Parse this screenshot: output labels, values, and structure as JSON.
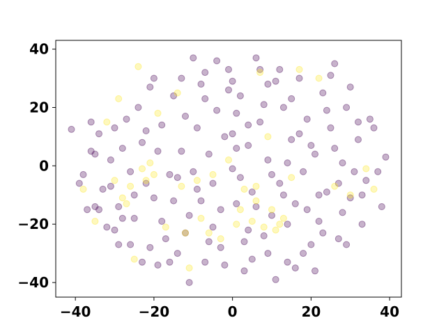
{
  "chart_data": {
    "type": "scatter",
    "title": "",
    "xlabel": "",
    "ylabel": "",
    "xlim": [
      -45,
      43
    ],
    "ylim": [
      -45,
      43
    ],
    "x_ticks": [
      -40,
      -20,
      0,
      20,
      40
    ],
    "y_ticks": [
      -40,
      -20,
      0,
      20,
      40
    ],
    "grid": false,
    "legend": "none",
    "colors": {
      "class_0": "#440154",
      "class_1": "#fde725"
    },
    "marker_alpha": 0.3,
    "series": [
      {
        "class": 0,
        "color": "#440154",
        "points": [
          [
            -41,
            12.5
          ],
          [
            -38,
            -3
          ],
          [
            -36,
            5
          ],
          [
            -35,
            -14
          ],
          [
            -34,
            -15
          ],
          [
            -33,
            -8
          ],
          [
            -31,
            2
          ],
          [
            -30,
            -22
          ],
          [
            -28,
            6
          ],
          [
            -26,
            -27
          ],
          [
            -25,
            -18
          ],
          [
            -23,
            -33
          ],
          [
            -22,
            -6
          ],
          [
            -21,
            27
          ],
          [
            -20,
            -11
          ],
          [
            -18,
            14
          ],
          [
            -17,
            -25
          ],
          [
            -16,
            -3
          ],
          [
            -15,
            24
          ],
          [
            -14,
            -30
          ],
          [
            -13,
            5
          ],
          [
            -12,
            17
          ],
          [
            -11,
            -17
          ],
          [
            -10,
            37
          ],
          [
            -9,
            -8
          ],
          [
            -8,
            28
          ],
          [
            -7,
            -33
          ],
          [
            -6,
            4
          ],
          [
            -5,
            -21
          ],
          [
            -4,
            19
          ],
          [
            -3,
            -28
          ],
          [
            -2,
            10
          ],
          [
            -1,
            33
          ],
          [
            0,
            -1
          ],
          [
            1,
            -13
          ],
          [
            2,
            24
          ],
          [
            3,
            -36
          ],
          [
            4,
            7
          ],
          [
            5,
            -9
          ],
          [
            6,
            37
          ],
          [
            7,
            15
          ],
          [
            8,
            -24
          ],
          [
            9,
            2
          ],
          [
            10,
            -17
          ],
          [
            11,
            29
          ],
          [
            12,
            -6
          ],
          [
            13,
            20
          ],
          [
            14,
            -33
          ],
          [
            15,
            9
          ],
          [
            16,
            -13
          ],
          [
            17,
            30
          ],
          [
            18,
            -2
          ],
          [
            19,
            16
          ],
          [
            20,
            -27
          ],
          [
            21,
            4
          ],
          [
            22,
            -19
          ],
          [
            23,
            25
          ],
          [
            24,
            -9
          ],
          [
            25,
            13
          ],
          [
            26,
            35
          ],
          [
            27,
            -25
          ],
          [
            28,
            1
          ],
          [
            29,
            20
          ],
          [
            30,
            -11
          ],
          [
            32,
            9
          ],
          [
            34,
            -5
          ],
          [
            36,
            13
          ],
          [
            38,
            -14
          ],
          [
            39,
            3
          ],
          [
            -37,
            -15
          ],
          [
            -34,
            11
          ],
          [
            -29,
            -14
          ],
          [
            -24,
            20
          ],
          [
            -19,
            -34
          ],
          [
            -11,
            -40
          ],
          [
            -7,
            23
          ],
          [
            -3,
            -15
          ],
          [
            0,
            29
          ],
          [
            2,
            -4
          ],
          [
            5,
            -32
          ],
          [
            8,
            21
          ],
          [
            11,
            -39
          ],
          [
            14,
            -20
          ],
          [
            17,
            11
          ],
          [
            21,
            -36
          ],
          [
            25,
            31
          ],
          [
            28,
            -16
          ],
          [
            31,
            -2
          ],
          [
            33,
            -20
          ],
          [
            35,
            16
          ],
          [
            -32,
            -21
          ],
          [
            -27,
            16
          ],
          [
            -21,
            -28
          ],
          [
            -15,
            -12
          ],
          [
            -9,
            13
          ],
          [
            -5,
            -6
          ],
          [
            1,
            18
          ],
          [
            6,
            -14
          ],
          [
            12,
            33
          ],
          [
            18,
            -30
          ],
          [
            -39,
            -6
          ],
          [
            -36,
            15
          ],
          [
            -30,
            13
          ],
          [
            -26,
            -2
          ],
          [
            -23,
            8
          ],
          [
            -18,
            -19
          ],
          [
            -13,
            30
          ],
          [
            -8,
            -12
          ],
          [
            -4,
            36
          ],
          [
            0,
            11
          ],
          [
            4,
            -22
          ],
          [
            9,
            28
          ],
          [
            13,
            -10
          ],
          [
            16,
            -35
          ],
          [
            20,
            7
          ],
          [
            24,
            19
          ],
          [
            27,
            -6
          ],
          [
            30,
            27
          ],
          [
            33,
            -10
          ],
          [
            37,
            -2
          ],
          [
            -31,
            -7
          ],
          [
            -28,
            -18
          ],
          [
            -25,
            -10
          ],
          [
            -22,
            12
          ],
          [
            -19,
            5
          ],
          [
            -16,
            -33
          ],
          [
            -12,
            -23
          ],
          [
            -10,
            -2
          ],
          [
            -7,
            32
          ],
          [
            -2,
            -34
          ],
          [
            1,
            6
          ],
          [
            3,
            -26
          ],
          [
            7,
            33
          ],
          [
            10,
            -3
          ],
          [
            15,
            23
          ],
          [
            19,
            -15
          ],
          [
            23,
            -23
          ],
          [
            26,
            6
          ],
          [
            29,
            -27
          ],
          [
            32,
            15
          ],
          [
            -35,
            4
          ],
          [
            -29,
            -27
          ],
          [
            -20,
            30
          ],
          [
            -14,
            -4
          ],
          [
            -6,
            -26
          ],
          [
            -1,
            26
          ],
          [
            4,
            14
          ],
          [
            9,
            -30
          ],
          [
            14,
            1
          ],
          [
            22,
            -10
          ]
        ]
      },
      {
        "class": 1,
        "color": "#fde725",
        "points": [
          [
            -38,
            -8
          ],
          [
            -35,
            -19
          ],
          [
            -32,
            15
          ],
          [
            -30,
            -5
          ],
          [
            -29,
            23
          ],
          [
            -28,
            -11
          ],
          [
            -26,
            -7
          ],
          [
            -25,
            -32
          ],
          [
            -24,
            34
          ],
          [
            -23,
            -1
          ],
          [
            -22,
            -5
          ],
          [
            -21,
            1
          ],
          [
            -19,
            18
          ],
          [
            -17,
            -21
          ],
          [
            -13,
            -7
          ],
          [
            -12,
            -23
          ],
          [
            -11,
            -35
          ],
          [
            -9,
            -5
          ],
          [
            -8,
            -18
          ],
          [
            -5,
            -3
          ],
          [
            -3,
            -25
          ],
          [
            -1,
            2
          ],
          [
            1,
            -20
          ],
          [
            3,
            -8
          ],
          [
            5,
            -19
          ],
          [
            6,
            -12
          ],
          [
            7,
            32
          ],
          [
            8,
            -21
          ],
          [
            9,
            10
          ],
          [
            10,
            -15
          ],
          [
            11,
            -22
          ],
          [
            13,
            -18
          ],
          [
            15,
            -4
          ],
          [
            17,
            33
          ],
          [
            22,
            30
          ],
          [
            26,
            -7
          ],
          [
            30,
            -10
          ],
          [
            34,
            -1
          ],
          [
            36,
            -8
          ],
          [
            -14,
            25
          ],
          [
            -6,
            -23
          ],
          [
            2,
            -15
          ],
          [
            6,
            -7
          ],
          [
            12,
            -20
          ],
          [
            -20,
            -3
          ],
          [
            -27,
            -13
          ]
        ]
      }
    ]
  }
}
